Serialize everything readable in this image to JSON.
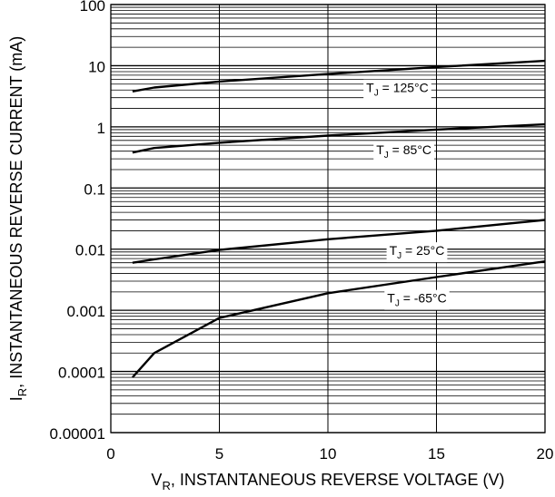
{
  "chart_data": {
    "type": "line",
    "y_scale": "log",
    "xlabel_main": "V",
    "xlabel_sub": "R",
    "xlabel_rest": ", INSTANTANEOUS REVERSE VOLTAGE (V)",
    "ylabel_main": "I",
    "ylabel_sub": "R",
    "ylabel_rest": ", INSTANTANEOUS REVERSE CURRENT (mA)",
    "xlim": [
      0,
      20
    ],
    "ylim": [
      1e-05,
      100
    ],
    "x_ticks": [
      {
        "value": 0,
        "label": "0"
      },
      {
        "value": 5,
        "label": "5"
      },
      {
        "value": 10,
        "label": "10"
      },
      {
        "value": 15,
        "label": "15"
      },
      {
        "value": 20,
        "label": "20"
      }
    ],
    "y_ticks": [
      {
        "value": 100,
        "label": "100"
      },
      {
        "value": 10,
        "label": "10"
      },
      {
        "value": 1,
        "label": "1"
      },
      {
        "value": 0.1,
        "label": "0.1"
      },
      {
        "value": 0.01,
        "label": "0.01"
      },
      {
        "value": 0.001,
        "label": "0.001"
      },
      {
        "value": 0.0001,
        "label": "0.0001"
      },
      {
        "value": 1e-05,
        "label": "0.00001"
      }
    ],
    "grid": true,
    "series": [
      {
        "name_main": "T",
        "name_sub": "J",
        "name_rest": " = 125°C",
        "label_x": 13.2,
        "x": [
          1,
          2,
          5,
          10,
          15,
          20
        ],
        "y": [
          3.8,
          4.4,
          5.5,
          7.3,
          9.5,
          12
        ]
      },
      {
        "name_main": "T",
        "name_sub": "J",
        "name_rest": " = 85°C",
        "label_x": 13.5,
        "x": [
          1,
          2,
          5,
          10,
          15,
          20
        ],
        "y": [
          0.38,
          0.45,
          0.55,
          0.72,
          0.9,
          1.1
        ]
      },
      {
        "name_main": "T",
        "name_sub": "J",
        "name_rest": " = 25°C",
        "label_x": 14.1,
        "x": [
          1,
          2,
          5,
          10,
          15,
          20
        ],
        "y": [
          0.006,
          0.0068,
          0.0097,
          0.0145,
          0.02,
          0.03
        ]
      },
      {
        "name_main": "T",
        "name_sub": "J",
        "name_rest": " = -65°C",
        "label_x": 14.1,
        "x": [
          1,
          2,
          5,
          10,
          15,
          20
        ],
        "y": [
          8e-05,
          0.0002,
          0.00075,
          0.0019,
          0.0035,
          0.0063
        ]
      }
    ]
  }
}
